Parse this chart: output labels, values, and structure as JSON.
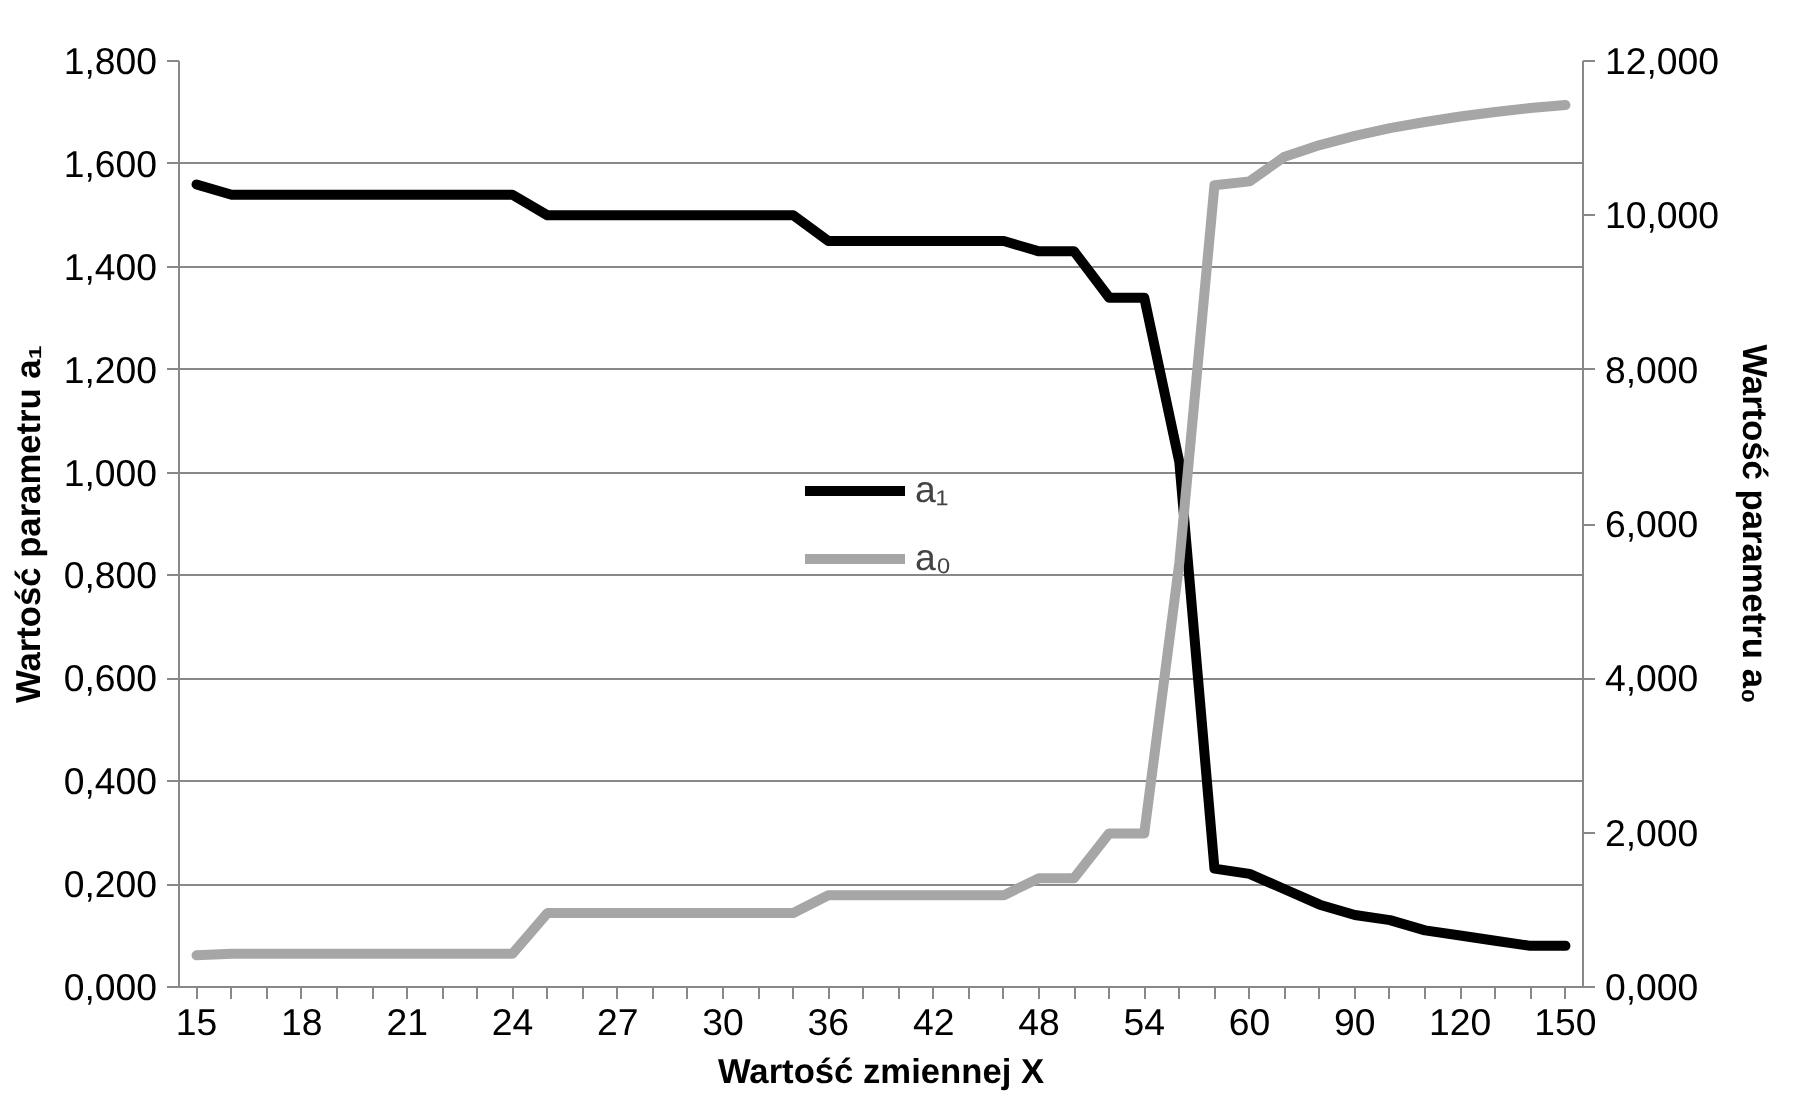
{
  "chart_data": {
    "type": "line",
    "xlabel": "Wartość zmiennej X",
    "ylabel": "Wartość parametru a₁",
    "y2label": "Wartość parametru a₀",
    "categories": [
      "15",
      null,
      null,
      "18",
      null,
      null,
      "21",
      null,
      null,
      "24",
      null,
      null,
      "27",
      null,
      null,
      "30",
      null,
      null,
      "36",
      null,
      null,
      "42",
      null,
      null,
      "48",
      null,
      null,
      "54",
      null,
      null,
      "60",
      null,
      null,
      "90",
      null,
      null,
      "120",
      null,
      null,
      "150"
    ],
    "series": [
      {
        "name": "a₁",
        "color": "#000000",
        "values": [
          1.56,
          1.54,
          1.54,
          1.54,
          1.54,
          1.54,
          1.54,
          1.54,
          1.54,
          1.54,
          1.5,
          1.5,
          1.5,
          1.5,
          1.5,
          1.5,
          1.5,
          1.5,
          1.45,
          1.45,
          1.45,
          1.45,
          1.45,
          1.45,
          1.43,
          1.43,
          1.34,
          1.34,
          1.02,
          0.23,
          0.22,
          0.19,
          0.16,
          0.14,
          0.13,
          0.11,
          0.1,
          0.09,
          0.08,
          0.08
        ]
      },
      {
        "name": "a₀",
        "color": "#a6a6a6",
        "axis": "y2",
        "values": [
          0.41,
          0.43,
          0.43,
          0.43,
          0.43,
          0.43,
          0.43,
          0.43,
          0.43,
          0.43,
          0.96,
          0.96,
          0.96,
          0.96,
          0.96,
          0.96,
          0.96,
          0.96,
          1.19,
          1.19,
          1.19,
          1.19,
          1.19,
          1.19,
          1.41,
          1.41,
          1.99,
          1.99,
          5.5,
          10.39,
          10.44,
          10.76,
          10.91,
          11.03,
          11.13,
          11.21,
          11.28,
          11.34,
          11.39,
          11.43
        ]
      }
    ],
    "ylim": [
      0,
      1.8
    ],
    "yticks": [
      {
        "value": 0,
        "label": "0,000"
      },
      {
        "value": 0.2,
        "label": "0,200"
      },
      {
        "value": 0.4,
        "label": "0,400"
      },
      {
        "value": 0.6,
        "label": "0,600"
      },
      {
        "value": 0.8,
        "label": "0,800"
      },
      {
        "value": 1.0,
        "label": "1,000"
      },
      {
        "value": 1.2,
        "label": "1,200"
      },
      {
        "value": 1.4,
        "label": "1,400"
      },
      {
        "value": 1.6,
        "label": "1,600"
      },
      {
        "value": 1.8,
        "label": "1,800"
      }
    ],
    "y2lim": [
      0,
      12
    ],
    "y2ticks": [
      {
        "value": 0,
        "label": "0,000"
      },
      {
        "value": 2,
        "label": "2,000"
      },
      {
        "value": 4,
        "label": "4,000"
      },
      {
        "value": 6,
        "label": "6,000"
      },
      {
        "value": 8,
        "label": "8,000"
      },
      {
        "value": 10,
        "label": "10,000"
      },
      {
        "value": 12,
        "label": "12,000"
      }
    ],
    "grid": "y",
    "legend": "center",
    "line_style": "solid"
  }
}
